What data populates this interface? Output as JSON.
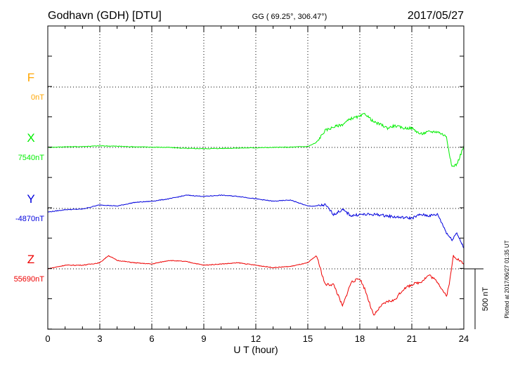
{
  "chart_data": {
    "type": "line",
    "station": "Godhavn (GDH)  [DTU]",
    "coords": "GG ( 69.25°, 306.47°)",
    "date": "2017/05/27",
    "xlabel": "U T (hour)",
    "xlim": [
      0,
      24
    ],
    "x_ticks": [
      "0",
      "3",
      "6",
      "9",
      "12",
      "15",
      "18",
      "21",
      "24"
    ],
    "scale_label": "500 nT",
    "scale_nT": 500,
    "plotted_note": "Plotted at 2017/06/27 01:35 UT",
    "series": [
      {
        "name": "F",
        "baseline": "0nT",
        "color": "#ffa500",
        "x": [],
        "y": []
      },
      {
        "name": "X",
        "baseline": "7540nT",
        "color": "#00ee00",
        "x": [
          0,
          1,
          2,
          3,
          4,
          5,
          6,
          7,
          8,
          9,
          10,
          11,
          12,
          13,
          14,
          15,
          15.5,
          16,
          16.5,
          17,
          17.5,
          18,
          18.3,
          18.8,
          19.2,
          19.6,
          20,
          20.5,
          21,
          21.5,
          22,
          22.5,
          23,
          23.3,
          23.6,
          24
        ],
        "y": [
          7540,
          7545,
          7547,
          7553,
          7550,
          7545,
          7542,
          7540,
          7532,
          7530,
          7532,
          7535,
          7537,
          7540,
          7542,
          7548,
          7580,
          7680,
          7710,
          7730,
          7780,
          7795,
          7820,
          7750,
          7730,
          7700,
          7720,
          7700,
          7700,
          7650,
          7670,
          7670,
          7630,
          7380,
          7400,
          7550
        ]
      },
      {
        "name": "Y",
        "baseline": "-4870nT",
        "color": "#0000dd",
        "x": [
          0,
          1,
          2,
          3,
          4,
          5,
          6,
          7,
          8,
          9,
          10,
          11,
          12,
          13,
          14,
          15,
          15.5,
          16,
          16.5,
          17,
          17.5,
          18,
          19,
          20,
          21,
          21.5,
          22,
          22.5,
          23,
          23.3,
          23.6,
          24
        ],
        "y": [
          -4900,
          -4880,
          -4875,
          -4840,
          -4850,
          -4820,
          -4810,
          -4790,
          -4760,
          -4770,
          -4760,
          -4770,
          -4790,
          -4810,
          -4800,
          -4850,
          -4850,
          -4840,
          -4920,
          -4880,
          -4930,
          -4920,
          -4920,
          -4940,
          -4950,
          -4920,
          -4930,
          -4920,
          -5070,
          -5130,
          -5070,
          -5200
        ]
      },
      {
        "name": "Z",
        "baseline": "55690nT",
        "color": "#ee0000",
        "x": [
          0,
          1,
          2,
          3,
          3.5,
          4,
          5,
          6,
          7,
          8,
          9,
          10,
          11,
          12,
          13,
          14,
          15,
          15.5,
          16,
          16.5,
          17,
          17.5,
          18,
          18.3,
          18.8,
          19.2,
          19.6,
          20,
          20.5,
          21,
          21.5,
          22,
          22.5,
          23,
          23.2,
          23.4,
          24
        ],
        "y": [
          55690,
          55720,
          55720,
          55740,
          55800,
          55760,
          55740,
          55730,
          55760,
          55750,
          55720,
          55730,
          55740,
          55720,
          55700,
          55710,
          55740,
          55800,
          55560,
          55560,
          55380,
          55580,
          55610,
          55520,
          55300,
          55380,
          55420,
          55430,
          55520,
          55560,
          55580,
          55640,
          55580,
          55460,
          55600,
          55800,
          55730
        ]
      }
    ]
  }
}
